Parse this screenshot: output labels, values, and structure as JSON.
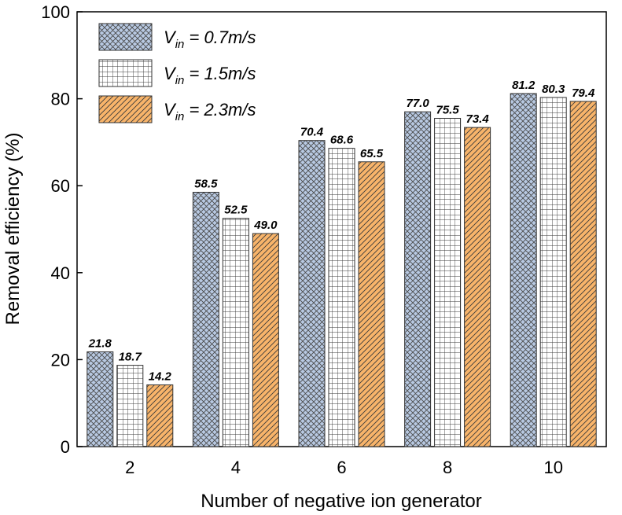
{
  "chart_data": {
    "type": "bar",
    "title": "",
    "xlabel": "Number of negative ion generator",
    "ylabel": "Removal efficiency (%)",
    "categories": [
      "2",
      "4",
      "6",
      "8",
      "10"
    ],
    "ylim": [
      0,
      100
    ],
    "yticks": [
      "0",
      "20",
      "40",
      "60",
      "80",
      "100"
    ],
    "grid": false,
    "legend_position": "top-left",
    "series": [
      {
        "name": "V_in = 0.7m/s",
        "legend_main": "V",
        "legend_sub": "in",
        "legend_rest": " = 0.7m/s",
        "pattern": "crosshatch",
        "color": "#b8c9e2",
        "values": [
          21.8,
          58.5,
          70.4,
          77.0,
          81.2
        ],
        "labels": [
          "21.8",
          "58.5",
          "70.4",
          "77.0",
          "81.2"
        ]
      },
      {
        "name": "V_in = 1.5m/s",
        "legend_main": "V",
        "legend_sub": "in",
        "legend_rest": " = 1.5m/s",
        "pattern": "grid",
        "color": "#ffffff",
        "values": [
          18.7,
          52.5,
          68.6,
          75.5,
          80.3
        ],
        "labels": [
          "18.7",
          "52.5",
          "68.6",
          "75.5",
          "80.3"
        ]
      },
      {
        "name": "V_in = 2.3m/s",
        "legend_main": "V",
        "legend_sub": "in",
        "legend_rest": " = 2.3m/s",
        "pattern": "diagonal",
        "color": "#f8b46a",
        "values": [
          14.2,
          49.0,
          65.5,
          73.4,
          79.4
        ],
        "labels": [
          "14.2",
          "49.0",
          "65.5",
          "73.4",
          "79.4"
        ]
      }
    ]
  }
}
